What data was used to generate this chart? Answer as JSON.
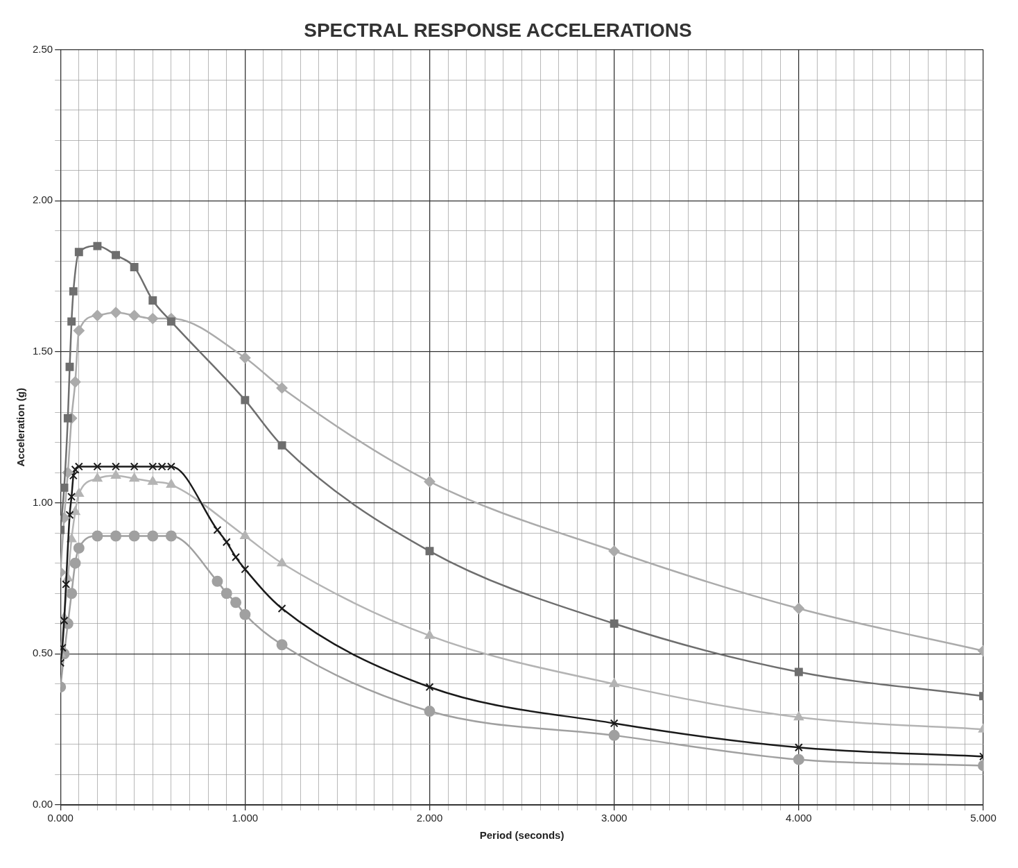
{
  "chart_data": {
    "type": "line",
    "title": "SPECTRAL RESPONSE ACCELERATIONS",
    "xlabel": "Period (seconds)",
    "ylabel": "Acceleration (g)",
    "grid": true,
    "line_style": "solid",
    "xlim": [
      0,
      5
    ],
    "ylim": [
      0,
      2.5
    ],
    "xticks": [
      {
        "value": 0,
        "label": "0.000"
      },
      {
        "value": 0.1,
        "label": null
      },
      {
        "value": 0.2,
        "label": null
      },
      {
        "value": 0.3,
        "label": null
      },
      {
        "value": 0.4,
        "label": null
      },
      {
        "value": 0.5,
        "label": null
      },
      {
        "value": 0.6,
        "label": null
      },
      {
        "value": 0.7,
        "label": null
      },
      {
        "value": 0.8,
        "label": null
      },
      {
        "value": 0.9,
        "label": null
      },
      {
        "value": 1,
        "label": "1.000"
      },
      {
        "value": 1.1,
        "label": null
      },
      {
        "value": 1.2,
        "label": null
      },
      {
        "value": 1.3,
        "label": null
      },
      {
        "value": 1.4,
        "label": null
      },
      {
        "value": 1.5,
        "label": null
      },
      {
        "value": 1.6,
        "label": null
      },
      {
        "value": 1.7,
        "label": null
      },
      {
        "value": 1.8,
        "label": null
      },
      {
        "value": 1.9,
        "label": null
      },
      {
        "value": 2,
        "label": "2.000"
      },
      {
        "value": 2.1,
        "label": null
      },
      {
        "value": 2.2,
        "label": null
      },
      {
        "value": 2.3,
        "label": null
      },
      {
        "value": 2.4,
        "label": null
      },
      {
        "value": 2.5,
        "label": null
      },
      {
        "value": 2.6,
        "label": null
      },
      {
        "value": 2.7,
        "label": null
      },
      {
        "value": 2.8,
        "label": null
      },
      {
        "value": 2.9,
        "label": null
      },
      {
        "value": 3,
        "label": "3.000"
      },
      {
        "value": 3.1,
        "label": null
      },
      {
        "value": 3.2,
        "label": null
      },
      {
        "value": 3.3,
        "label": null
      },
      {
        "value": 3.4,
        "label": null
      },
      {
        "value": 3.5,
        "label": null
      },
      {
        "value": 3.6,
        "label": null
      },
      {
        "value": 3.7,
        "label": null
      },
      {
        "value": 3.8,
        "label": null
      },
      {
        "value": 3.9,
        "label": null
      },
      {
        "value": 4,
        "label": "4.000"
      },
      {
        "value": 4.1,
        "label": null
      },
      {
        "value": 4.2,
        "label": null
      },
      {
        "value": 4.3,
        "label": null
      },
      {
        "value": 4.4,
        "label": null
      },
      {
        "value": 4.5,
        "label": null
      },
      {
        "value": 4.6,
        "label": null
      },
      {
        "value": 4.7,
        "label": null
      },
      {
        "value": 4.8,
        "label": null
      },
      {
        "value": 4.9,
        "label": null
      },
      {
        "value": 5,
        "label": "5.000"
      }
    ],
    "yticks": [
      {
        "value": 0,
        "label": "0.00"
      },
      {
        "value": 0.1,
        "label": null
      },
      {
        "value": 0.2,
        "label": null
      },
      {
        "value": 0.3,
        "label": null
      },
      {
        "value": 0.4,
        "label": null
      },
      {
        "value": 0.5,
        "label": "0.50"
      },
      {
        "value": 0.6,
        "label": null
      },
      {
        "value": 0.7,
        "label": null
      },
      {
        "value": 0.8,
        "label": null
      },
      {
        "value": 0.9,
        "label": null
      },
      {
        "value": 1,
        "label": "1.00"
      },
      {
        "value": 1.1,
        "label": null
      },
      {
        "value": 1.2,
        "label": null
      },
      {
        "value": 1.3,
        "label": null
      },
      {
        "value": 1.4,
        "label": null
      },
      {
        "value": 1.5,
        "label": "1.50"
      },
      {
        "value": 1.6,
        "label": null
      },
      {
        "value": 1.7,
        "label": null
      },
      {
        "value": 1.8,
        "label": null
      },
      {
        "value": 1.9,
        "label": null
      },
      {
        "value": 2,
        "label": "2.00"
      },
      {
        "value": 2.1,
        "label": null
      },
      {
        "value": 2.2,
        "label": null
      },
      {
        "value": 2.3,
        "label": null
      },
      {
        "value": 2.4,
        "label": null
      },
      {
        "value": 2.5,
        "label": "2.50"
      }
    ],
    "series": [
      {
        "color": "#6e6e6e",
        "marker": "square",
        "x": [
          0,
          0.02,
          0.04,
          0.05,
          0.06,
          0.07,
          0.1,
          0.2,
          0.3,
          0.4,
          0.5,
          0.6,
          1,
          1.2,
          2,
          3,
          4,
          5
        ],
        "values": [
          0.91,
          1.05,
          1.28,
          1.45,
          1.6,
          1.7,
          1.83,
          1.85,
          1.82,
          1.78,
          1.67,
          1.6,
          1.34,
          1.19,
          0.84,
          0.6,
          0.44,
          0.36
        ]
      },
      {
        "color": "#ababab",
        "marker": "diamond",
        "x": [
          0,
          0.02,
          0.04,
          0.06,
          0.08,
          0.1,
          0.2,
          0.3,
          0.4,
          0.5,
          0.6,
          1,
          1.2,
          2,
          3,
          4,
          5
        ],
        "values": [
          0.77,
          0.95,
          1.1,
          1.28,
          1.4,
          1.57,
          1.62,
          1.63,
          1.62,
          1.61,
          1.61,
          1.48,
          1.38,
          1.07,
          0.84,
          0.65,
          0.51
        ]
      },
      {
        "color": "#1a1a1a",
        "marker": "cross",
        "x": [
          0,
          0.01,
          0.02,
          0.03,
          0.05,
          0.06,
          0.07,
          0.08,
          0.1,
          0.2,
          0.3,
          0.4,
          0.5,
          0.55,
          0.6,
          0.85,
          0.9,
          0.95,
          1,
          1.2,
          2,
          3,
          4,
          5
        ],
        "values": [
          0.47,
          0.52,
          0.61,
          0.73,
          0.96,
          1.02,
          1.09,
          1.11,
          1.12,
          1.12,
          1.12,
          1.12,
          1.12,
          1.12,
          1.12,
          0.91,
          0.87,
          0.82,
          0.78,
          0.65,
          0.39,
          0.27,
          0.19,
          0.16
        ]
      },
      {
        "color": "#b4b4b4",
        "marker": "triangle",
        "x": [
          0,
          0.02,
          0.04,
          0.06,
          0.08,
          0.1,
          0.2,
          0.3,
          0.4,
          0.5,
          0.6,
          1,
          1.2,
          2,
          3,
          4,
          5
        ],
        "values": [
          0.5,
          0.62,
          0.75,
          0.88,
          0.97,
          1.03,
          1.08,
          1.09,
          1.08,
          1.07,
          1.06,
          0.89,
          0.8,
          0.56,
          0.4,
          0.29,
          0.25
        ]
      },
      {
        "color": "#a0a0a0",
        "marker": "circle",
        "x": [
          0,
          0.02,
          0.04,
          0.06,
          0.08,
          0.1,
          0.2,
          0.3,
          0.4,
          0.5,
          0.6,
          0.85,
          0.9,
          0.95,
          1,
          1.2,
          2,
          3,
          4,
          5
        ],
        "values": [
          0.39,
          0.5,
          0.6,
          0.7,
          0.8,
          0.85,
          0.89,
          0.89,
          0.89,
          0.89,
          0.89,
          0.74,
          0.7,
          0.67,
          0.63,
          0.53,
          0.31,
          0.23,
          0.15,
          0.13
        ]
      }
    ]
  }
}
